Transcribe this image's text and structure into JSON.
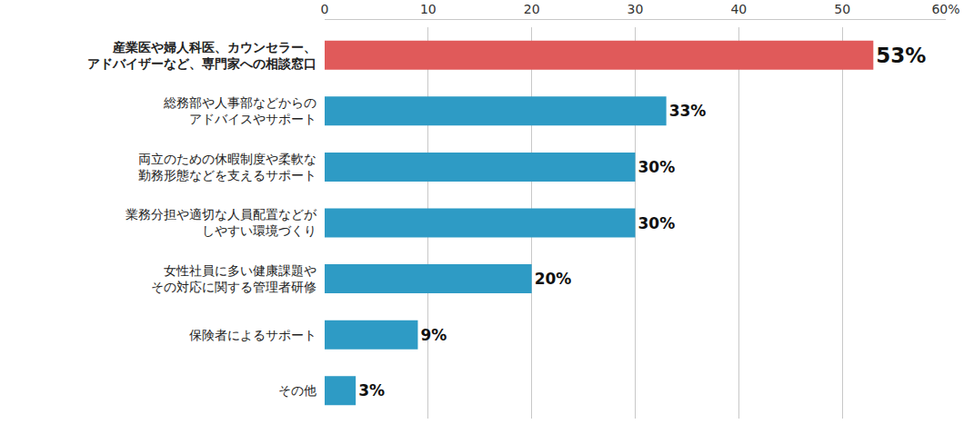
{
  "chart_data": {
    "type": "bar",
    "orientation": "horizontal",
    "categories": [
      "産業医や婦人科医、カウンセラー、\nアドバイザーなど、専門家への相談窓口",
      "総務部や人事部などからの\nアドバイスやサポート",
      "両立のための休暇制度や柔軟な\n勤務形態などを支えるサポート",
      "業務分担や適切な人員配置などが\nしやすい環境づくり",
      "女性社員に多い健康課題や\nその対応に関する管理者研修",
      "保険者によるサポート",
      "その他"
    ],
    "values": [
      53,
      33,
      30,
      30,
      20,
      9,
      3
    ],
    "value_labels": [
      "53%",
      "33%",
      "30%",
      "30%",
      "20%",
      "9%",
      "3%"
    ],
    "colors": [
      "#e05a5a",
      "#2e9bc5",
      "#2e9bc5",
      "#2e9bc5",
      "#2e9bc5",
      "#2e9bc5",
      "#2e9bc5"
    ],
    "xlim": [
      0,
      60
    ],
    "xticks": [
      0,
      10,
      20,
      30,
      40,
      50,
      {
        "value": 60,
        "label": "60%"
      }
    ],
    "grid": true,
    "data_labels": true
  }
}
